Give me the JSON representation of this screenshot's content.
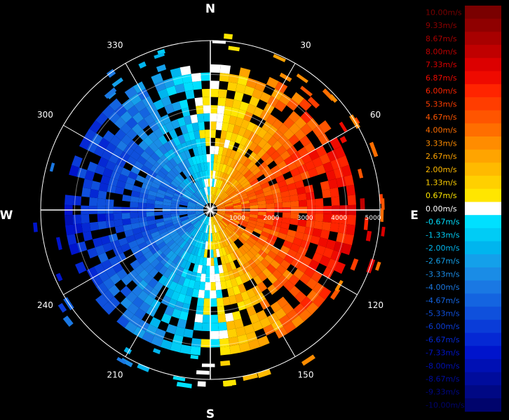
{
  "compass": {
    "north": "N",
    "south": "S",
    "east": "E",
    "west": "W"
  },
  "bearings": [
    {
      "deg": 30,
      "label": "30"
    },
    {
      "deg": 60,
      "label": "60"
    },
    {
      "deg": 120,
      "label": "120"
    },
    {
      "deg": 150,
      "label": "150"
    },
    {
      "deg": 210,
      "label": "210"
    },
    {
      "deg": 240,
      "label": "240"
    },
    {
      "deg": 300,
      "label": "300"
    },
    {
      "deg": 330,
      "label": "330"
    }
  ],
  "range_rings": [
    {
      "value": 1000,
      "label": "1000"
    },
    {
      "value": 2000,
      "label": "2000"
    },
    {
      "value": 3000,
      "label": "3000"
    },
    {
      "value": 4000,
      "label": "4000"
    },
    {
      "value": 5000,
      "label": "5000"
    }
  ],
  "max_range": 5000,
  "colorbar": [
    {
      "label": "10.00m/s",
      "value": 10.0,
      "color": "#7a0000"
    },
    {
      "label": "9.33m/s",
      "value": 9.33,
      "color": "#8f0000"
    },
    {
      "label": "8.67m/s",
      "value": 8.67,
      "color": "#a80000"
    },
    {
      "label": "8.00m/s",
      "value": 8.0,
      "color": "#c00000"
    },
    {
      "label": "7.33m/s",
      "value": 7.33,
      "color": "#dc0000"
    },
    {
      "label": "6.87m/s",
      "value": 6.87,
      "color": "#ef0a00"
    },
    {
      "label": "6.00m/s",
      "value": 6.0,
      "color": "#ff2400"
    },
    {
      "label": "5.33m/s",
      "value": 5.33,
      "color": "#ff3d00"
    },
    {
      "label": "4.67m/s",
      "value": 4.67,
      "color": "#ff5500"
    },
    {
      "label": "4.00m/s",
      "value": 4.0,
      "color": "#ff6e00"
    },
    {
      "label": "3.33m/s",
      "value": 3.33,
      "color": "#ff8c00"
    },
    {
      "label": "2.67m/s",
      "value": 2.67,
      "color": "#ffa400"
    },
    {
      "label": "2.00m/s",
      "value": 2.0,
      "color": "#ffba00"
    },
    {
      "label": "1.33m/s",
      "value": 1.33,
      "color": "#ffd000"
    },
    {
      "label": "0.67m/s",
      "value": 0.67,
      "color": "#ffe600"
    },
    {
      "label": "0.00m/s",
      "value": 0.0,
      "color": "#ffffff"
    },
    {
      "label": "-0.67m/s",
      "value": -0.67,
      "color": "#00e0ff"
    },
    {
      "label": "-1.33m/s",
      "value": -1.33,
      "color": "#00ccf5"
    },
    {
      "label": "-2.00m/s",
      "value": -2.0,
      "color": "#00b5ee"
    },
    {
      "label": "-2.67m/s",
      "value": -2.67,
      "color": "#14a0ea"
    },
    {
      "label": "-3.33m/s",
      "value": -3.33,
      "color": "#1a8ce6"
    },
    {
      "label": "-4.00m/s",
      "value": -4.0,
      "color": "#1a78e3"
    },
    {
      "label": "-4.67m/s",
      "value": -4.67,
      "color": "#1464e0"
    },
    {
      "label": "-5.33m/s",
      "value": -5.33,
      "color": "#0f50dc"
    },
    {
      "label": "-6.00m/s",
      "value": -6.0,
      "color": "#0a3cd8"
    },
    {
      "label": "-6.67m/s",
      "value": -6.67,
      "color": "#0528d4"
    },
    {
      "label": "-7.33m/s",
      "value": -7.33,
      "color": "#0014cc"
    },
    {
      "label": "-8.00m/s",
      "value": -8.0,
      "color": "#0010b4"
    },
    {
      "label": "-8.67m/s",
      "value": -8.67,
      "color": "#000c9c"
    },
    {
      "label": "-9.33m/s",
      "value": -9.33,
      "color": "#000884"
    },
    {
      "label": "-10.00m/s",
      "value": -10.0,
      "color": "#00046c"
    }
  ]
}
